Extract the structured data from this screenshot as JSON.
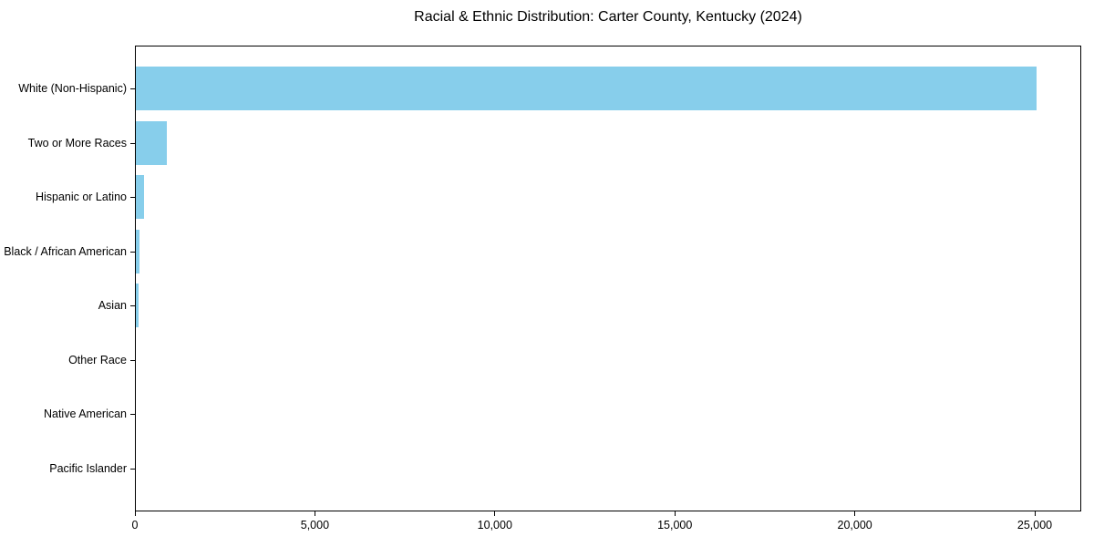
{
  "chart_data": {
    "type": "bar",
    "orientation": "horizontal",
    "title": "Racial & Ethnic Distribution: Carter County, Kentucky (2024)",
    "categories": [
      "White (Non-Hispanic)",
      "Two or More Races",
      "Hispanic or Latino",
      "Black / African American",
      "Asian",
      "Other Race",
      "Native American",
      "Pacific Islander"
    ],
    "values": [
      25050,
      880,
      250,
      120,
      110,
      30,
      20,
      10
    ],
    "xlabel": "",
    "ylabel": "",
    "xlim": [
      0,
      26291
    ],
    "x_ticks": [
      0,
      5000,
      10000,
      15000,
      20000,
      25000
    ],
    "x_tick_labels": [
      "0",
      "5,000",
      "10,000",
      "15,000",
      "20,000",
      "25,000"
    ],
    "bar_color": "#87CEEB",
    "text_color": "#000000",
    "grid": false,
    "legend": false,
    "value_labels_shown": false
  }
}
